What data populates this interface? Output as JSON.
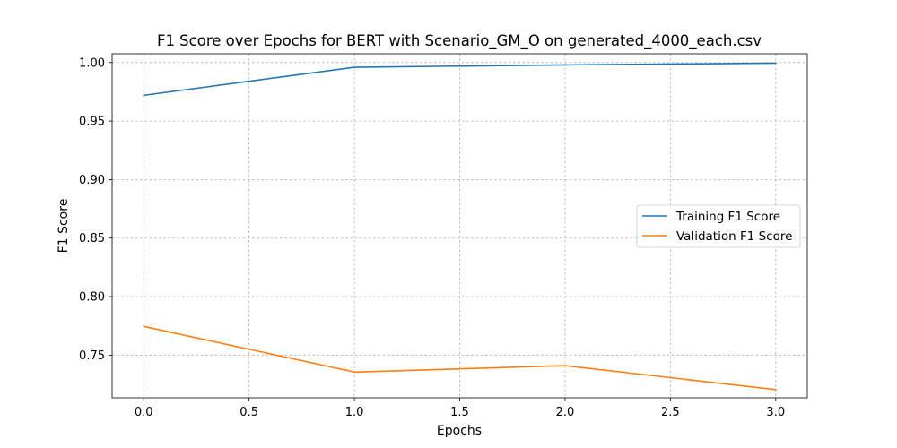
{
  "chart_data": {
    "type": "line",
    "title": "F1 Score over Epochs for BERT with Scenario_GM_O on generated_4000_each.csv",
    "xlabel": "Epochs",
    "ylabel": "F1 Score",
    "xlim": [
      -0.15,
      3.15
    ],
    "ylim": [
      0.7135,
      1.0075
    ],
    "x_ticks": [
      0.0,
      0.5,
      1.0,
      1.5,
      2.0,
      2.5,
      3.0
    ],
    "x_tick_labels": [
      "0.0",
      "0.5",
      "1.0",
      "1.5",
      "2.0",
      "2.5",
      "3.0"
    ],
    "y_ticks": [
      0.75,
      0.8,
      0.85,
      0.9,
      0.95,
      1.0
    ],
    "y_tick_labels": [
      "0.75",
      "0.80",
      "0.85",
      "0.90",
      "0.95",
      "1.00"
    ],
    "grid": true,
    "legend_position": "center-right",
    "x": [
      0,
      1,
      2,
      3
    ],
    "series": [
      {
        "name": "Training F1 Score",
        "color": "#1f77b4",
        "values": [
          0.972,
          0.996,
          0.998,
          0.9995
        ]
      },
      {
        "name": "Validation F1 Score",
        "color": "#ff7f0e",
        "values": [
          0.7745,
          0.7355,
          0.741,
          0.7205
        ]
      }
    ]
  }
}
